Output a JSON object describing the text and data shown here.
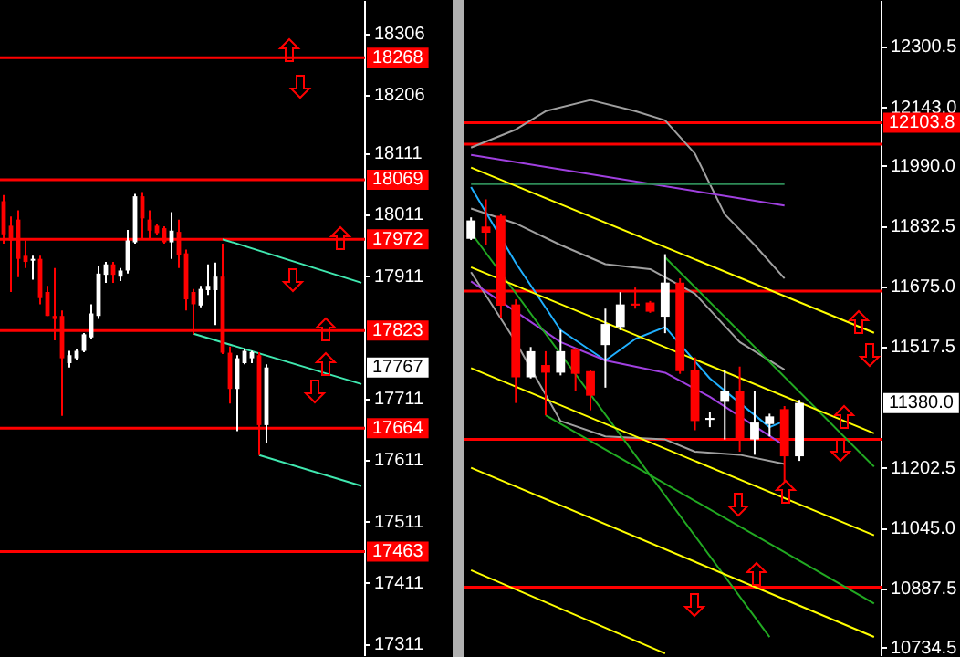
{
  "chart_data": [
    {
      "type": "candlestick",
      "categories": [
        null,
        null,
        null,
        null,
        null,
        null,
        null,
        null,
        null,
        null,
        null,
        null,
        null,
        null,
        null,
        null,
        null,
        null,
        null,
        null,
        null,
        null,
        null,
        null,
        null,
        null,
        null,
        null,
        null,
        null,
        null,
        null,
        null,
        null,
        null,
        null,
        null,
        null,
        null,
        null,
        null,
        null,
        null,
        null,
        null,
        null,
        null,
        null,
        null,
        null
      ],
      "ohlc": [
        [
          18034,
          18044,
          17965,
          17980
        ],
        [
          17994,
          18009,
          17886,
          17970
        ],
        [
          18004,
          18019,
          17910,
          17940
        ],
        [
          17945,
          17970,
          17925,
          17935
        ],
        [
          17937,
          17945,
          17906,
          17940
        ],
        [
          17940,
          17945,
          17866,
          17876
        ],
        [
          17886,
          17896,
          17847,
          17847
        ],
        [
          17847,
          17925,
          17807,
          17842
        ],
        [
          17847,
          17856,
          17684,
          17778
        ],
        [
          17770,
          17790,
          17763,
          17783
        ],
        [
          17778,
          17793,
          17776,
          17790
        ],
        [
          17790,
          17819,
          17788,
          17817
        ],
        [
          17812,
          17866,
          17809,
          17851
        ],
        [
          17847,
          17929,
          17842,
          17916
        ],
        [
          17914,
          17935,
          17901,
          17931
        ],
        [
          17931,
          17935,
          17901,
          17914
        ],
        [
          17911,
          17925,
          17904,
          17921
        ],
        [
          17921,
          17987,
          17916,
          17970
        ],
        [
          17967,
          18046,
          17965,
          18042
        ],
        [
          18042,
          18049,
          17973,
          18006
        ],
        [
          18004,
          18019,
          17973,
          17986
        ],
        [
          17994,
          17996,
          17979,
          17982
        ],
        [
          17990,
          17993,
          17965,
          17967
        ],
        [
          17967,
          18016,
          17940,
          17986
        ],
        [
          17984,
          18004,
          17925,
          17947
        ],
        [
          17949,
          17955,
          17856,
          17874
        ],
        [
          17886,
          17891,
          17817,
          17866
        ],
        [
          17864,
          17896,
          17861,
          17891
        ],
        [
          17889,
          17931,
          17881,
          17896
        ],
        [
          17889,
          17934,
          17832,
          17911
        ],
        [
          17911,
          17965,
          17785,
          17787
        ],
        [
          17787,
          17797,
          17704,
          17728
        ],
        [
          17728,
          17783,
          17659,
          17778
        ],
        [
          17770,
          17793,
          17768,
          17790
        ],
        [
          17778,
          17790,
          17770,
          17788
        ],
        [
          17783,
          17788,
          17620,
          17669
        ],
        [
          17669,
          17768,
          17639,
          17763
        ],
        null,
        null,
        null,
        null,
        null,
        null,
        null,
        null,
        null,
        null,
        null,
        null,
        null
      ],
      "colors": [
        "#ff0000",
        "#ff0000",
        "#ff0000",
        "#ff0000",
        "#ffffff",
        "#ff0000",
        "#ff0000",
        "#ff0000",
        "#ff0000",
        "#ffffff",
        "#ffffff",
        "#ffffff",
        "#ffffff",
        "#ffffff",
        "#ffffff",
        "#ff0000",
        "#ffffff",
        "#ffffff",
        "#ffffff",
        "#ff0000",
        "#ff0000",
        "#ff0000",
        "#ff0000",
        "#ffffff",
        "#ff0000",
        "#ff0000",
        "#ff0000",
        "#ffffff",
        "#ffffff",
        "#ffffff",
        "#ff0000",
        "#ff0000",
        "#ffffff",
        "#ffffff",
        "#ffffff",
        "#ff0000",
        "#ffffff",
        null,
        null,
        null,
        null,
        null,
        null,
        null,
        null,
        null,
        null,
        null,
        null,
        null
      ],
      "series": [
        {
          "type": "line",
          "color": "#40e8b0",
          "values": [
            null,
            null,
            null,
            null,
            null,
            null,
            null,
            null,
            null,
            null,
            null,
            null,
            null,
            null,
            null,
            null,
            null,
            null,
            null,
            null,
            null,
            null,
            null,
            null,
            null,
            null,
            null,
            null,
            null,
            null,
            17972,
            null,
            null,
            null,
            null,
            null,
            null,
            null,
            null,
            null,
            null,
            null,
            null,
            null,
            null,
            null,
            null,
            null,
            null,
            17901
          ]
        },
        {
          "type": "line",
          "color": "#40e8b0",
          "values": [
            null,
            null,
            null,
            null,
            null,
            null,
            null,
            null,
            null,
            null,
            null,
            null,
            null,
            null,
            null,
            null,
            null,
            null,
            null,
            null,
            null,
            null,
            null,
            null,
            null,
            null,
            17818,
            null,
            null,
            null,
            null,
            null,
            null,
            null,
            null,
            null,
            null,
            null,
            null,
            null,
            null,
            null,
            null,
            null,
            null,
            null,
            null,
            null,
            null,
            17736
          ]
        },
        {
          "type": "line",
          "color": "#40e8b0",
          "values": [
            null,
            null,
            null,
            null,
            null,
            null,
            null,
            null,
            null,
            null,
            null,
            null,
            null,
            null,
            null,
            null,
            null,
            null,
            null,
            null,
            null,
            null,
            null,
            null,
            null,
            null,
            null,
            null,
            null,
            null,
            null,
            null,
            null,
            null,
            null,
            17620,
            null,
            null,
            null,
            null,
            null,
            null,
            null,
            null,
            null,
            null,
            null,
            null,
            null,
            17570
          ]
        }
      ],
      "ylim": [
        17294,
        18359
      ],
      "yticks": [
        18306,
        18206,
        18111,
        18011,
        17911,
        17711,
        17611,
        17511,
        17411,
        17311
      ],
      "ref_lines": [
        {
          "axis": "y",
          "value": 18268,
          "label": "18268",
          "color": "#ff0000"
        },
        {
          "axis": "y",
          "value": 18069,
          "label": "18069",
          "color": "#ff0000"
        },
        {
          "axis": "y",
          "value": 17972,
          "label": "17972",
          "color": "#ff0000"
        },
        {
          "axis": "y",
          "value": 17823,
          "label": "17823",
          "color": "#ff0000"
        },
        {
          "axis": "y",
          "value": 17664,
          "label": "17664",
          "color": "#ff0000"
        },
        {
          "axis": "y",
          "value": 17463,
          "label": "17463",
          "color": "#ff0000"
        }
      ],
      "annotations": [
        "17767"
      ],
      "tick_labels": "y"
    },
    {
      "type": "candlestick",
      "categories": [
        null,
        null,
        null,
        null,
        null,
        null,
        null,
        null,
        null,
        null,
        null,
        null,
        null,
        null,
        null,
        null,
        null,
        null,
        null,
        null,
        null,
        null,
        null,
        null,
        null,
        null,
        null,
        null
      ],
      "ohlc": [
        [
          11801,
          11857,
          11798,
          11849
        ],
        [
          11833,
          11904,
          11785,
          11817
        ],
        [
          11861,
          11865,
          11595,
          11627
        ],
        [
          11630,
          11643,
          11373,
          11440
        ],
        [
          11440,
          11519,
          11437,
          11508
        ],
        [
          11472,
          11508,
          11341,
          11452
        ],
        [
          11452,
          11563,
          11445,
          11508
        ],
        [
          11512,
          11516,
          11405,
          11449
        ],
        [
          11456,
          11460,
          11354,
          11392
        ],
        [
          11524,
          11619,
          11413,
          11579
        ],
        [
          11571,
          11662,
          11563,
          11630
        ],
        [
          11632,
          11674,
          11619,
          11627
        ],
        [
          11635,
          11639,
          11608,
          11611
        ],
        [
          11598,
          11761,
          11555,
          11687
        ],
        [
          11687,
          11698,
          11449,
          11456
        ],
        [
          11460,
          11492,
          11302,
          11326
        ],
        [
          11329,
          11349,
          11310,
          11334
        ],
        [
          11376,
          11460,
          11278,
          11405
        ],
        [
          11405,
          11468,
          11246,
          11278
        ],
        [
          11278,
          11405,
          11238,
          11322
        ],
        [
          11318,
          11345,
          11286,
          11338
        ],
        [
          11357,
          11365,
          11167,
          11234
        ],
        [
          11234,
          11381,
          11222,
          11373
        ],
        null,
        null,
        null,
        null,
        null
      ],
      "colors": [
        "#ffffff",
        "#ff0000",
        "#ff0000",
        "#ff0000",
        "#ffffff",
        "#ff0000",
        "#ffffff",
        "#ff0000",
        "#ff0000",
        "#ffffff",
        "#ffffff",
        "#ff0000",
        "#ff0000",
        "#ffffff",
        "#ff0000",
        "#ff0000",
        "#ffffff",
        "#ffffff",
        "#ff0000",
        "#ffffff",
        "#ffffff",
        "#ff0000",
        "#ffffff",
        null,
        null,
        null,
        null,
        null
      ],
      "series": [
        {
          "type": "line",
          "color": "#ffff00",
          "values": [
            11987,
            null,
            null,
            null,
            null,
            null,
            null,
            null,
            null,
            null,
            null,
            null,
            null,
            null,
            null,
            null,
            null,
            null,
            null,
            null,
            null,
            null,
            null,
            null,
            null,
            null,
            null,
            11556
          ]
        },
        {
          "type": "line",
          "color": "#ffff00",
          "values": [
            11727,
            null,
            null,
            null,
            null,
            null,
            null,
            null,
            null,
            null,
            null,
            null,
            null,
            null,
            null,
            null,
            null,
            null,
            null,
            null,
            null,
            null,
            null,
            null,
            null,
            null,
            null,
            11294
          ]
        },
        {
          "type": "line",
          "color": "#ffff00",
          "values": [
            11464,
            null,
            null,
            null,
            null,
            null,
            null,
            null,
            null,
            null,
            null,
            null,
            null,
            null,
            null,
            null,
            null,
            null,
            null,
            null,
            null,
            null,
            null,
            null,
            null,
            null,
            null,
            11028
          ]
        },
        {
          "type": "line",
          "color": "#ffff00",
          "values": [
            11204,
            null,
            null,
            null,
            null,
            null,
            null,
            null,
            null,
            null,
            null,
            null,
            null,
            null,
            null,
            null,
            null,
            null,
            null,
            null,
            null,
            null,
            null,
            null,
            null,
            null,
            null,
            10763
          ]
        },
        {
          "type": "line",
          "color": "#ffff00",
          "values": [
            10937,
            null,
            null,
            null,
            null,
            null,
            null,
            null,
            null,
            null,
            null,
            null,
            null,
            10720,
            null,
            null,
            null,
            null,
            null,
            null,
            null,
            null,
            null,
            null,
            null,
            null,
            null,
            null
          ]
        },
        {
          "type": "line",
          "color": "#22aa22",
          "values": [
            null,
            null,
            null,
            null,
            null,
            null,
            null,
            null,
            null,
            null,
            null,
            null,
            null,
            11753,
            null,
            null,
            null,
            null,
            null,
            null,
            null,
            null,
            null,
            null,
            null,
            null,
            null,
            11207
          ]
        },
        {
          "type": "line",
          "color": "#22aa22",
          "values": [
            null,
            null,
            null,
            null,
            null,
            11341,
            null,
            null,
            null,
            null,
            null,
            null,
            null,
            null,
            null,
            null,
            null,
            null,
            null,
            null,
            null,
            null,
            null,
            null,
            null,
            null,
            null,
            10850
          ]
        },
        {
          "type": "line",
          "color": "#22aa22",
          "values": [
            11817,
            null,
            null,
            null,
            null,
            null,
            null,
            null,
            null,
            null,
            null,
            null,
            null,
            null,
            null,
            null,
            null,
            null,
            null,
            null,
            10763,
            null,
            null,
            null,
            null,
            null,
            null,
            null
          ]
        },
        {
          "type": "line",
          "color": "#2e8b57",
          "values": [
            11944,
            null,
            null,
            null,
            null,
            null,
            null,
            null,
            null,
            null,
            null,
            null,
            null,
            null,
            null,
            null,
            null,
            null,
            null,
            null,
            null,
            11944,
            null,
            null,
            null,
            null,
            null,
            null
          ]
        },
        {
          "type": "line",
          "color": "#a040e0",
          "values": [
            12020,
            null,
            null,
            null,
            null,
            null,
            null,
            null,
            null,
            null,
            null,
            null,
            null,
            null,
            null,
            null,
            null,
            null,
            null,
            null,
            null,
            11888,
            null,
            null,
            null,
            null,
            null,
            null
          ]
        },
        {
          "type": "line",
          "color": "#a040e0",
          "values": [
            11690,
            null,
            null,
            null,
            null,
            null,
            11532,
            null,
            null,
            11484,
            null,
            null,
            null,
            11452,
            null,
            null,
            11389,
            null,
            null,
            null,
            null,
            11262,
            null,
            null,
            null,
            null,
            null,
            null
          ]
        },
        {
          "type": "line",
          "color": "#20b0ff",
          "values": [
            11936,
            null,
            null,
            11738,
            null,
            null,
            11563,
            null,
            null,
            11484,
            null,
            11540,
            null,
            11571,
            null,
            null,
            11437,
            null,
            11373,
            null,
            11310,
            11326,
            null,
            null,
            null,
            null,
            null,
            null
          ]
        },
        {
          "type": "line",
          "color": "#a0a0a0",
          "values": [
            12039,
            null,
            null,
            12086,
            null,
            12134,
            null,
            null,
            12163,
            null,
            null,
            12134,
            null,
            12110,
            null,
            12023,
            null,
            11865,
            null,
            11785,
            null,
            11698,
            null,
            null,
            null,
            null,
            null,
            null
          ]
        },
        {
          "type": "line",
          "color": "#a0a0a0",
          "values": [
            11880,
            null,
            null,
            11841,
            null,
            null,
            11785,
            null,
            null,
            11735,
            null,
            null,
            11722,
            null,
            null,
            11658,
            null,
            null,
            11532,
            null,
            null,
            11460,
            null,
            null,
            null,
            null,
            null,
            null
          ]
        },
        {
          "type": "line",
          "color": "#a0a0a0",
          "values": [
            11714,
            null,
            null,
            11532,
            null,
            null,
            11326,
            null,
            null,
            11286,
            null,
            null,
            null,
            11278,
            null,
            11246,
            null,
            null,
            11238,
            null,
            null,
            11214,
            null,
            null,
            null,
            null,
            null,
            null
          ]
        }
      ],
      "ylim": [
        10715.5,
        12419
      ],
      "yticks": [
        12300.5,
        {
          "value": 12143,
          "label": "12143.0"
        },
        {
          "value": 11990,
          "label": "11990.0"
        },
        11832.5,
        {
          "value": 11675,
          "label": "11675.0"
        },
        11517.5,
        11202.5,
        {
          "value": 11045,
          "label": "11045.0"
        },
        10887.5,
        10734.5
      ],
      "ref_lines": [
        {
          "axis": "y",
          "value": 12103.8,
          "label": "12103.8",
          "color": "#ff0000"
        },
        {
          "axis": "y",
          "value": 12048,
          "label": null,
          "color": "#ff0000"
        },
        {
          "axis": "y",
          "value": 11665,
          "label": null,
          "color": "#ff0000"
        },
        {
          "axis": "y",
          "value": 11278,
          "label": null,
          "color": "#ff0000"
        },
        {
          "axis": "y",
          "value": 10893,
          "label": null,
          "color": "#ff0000"
        }
      ],
      "annotations": [
        "11380.0"
      ],
      "tick_labels": "y"
    }
  ]
}
